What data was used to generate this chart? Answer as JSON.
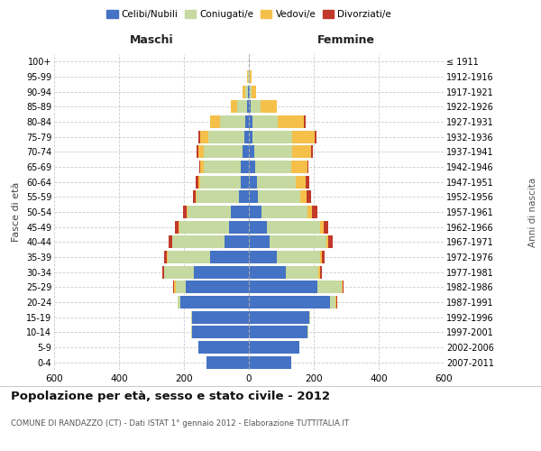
{
  "age_groups": [
    "0-4",
    "5-9",
    "10-14",
    "15-19",
    "20-24",
    "25-29",
    "30-34",
    "35-39",
    "40-44",
    "45-49",
    "50-54",
    "55-59",
    "60-64",
    "65-69",
    "70-74",
    "75-79",
    "80-84",
    "85-89",
    "90-94",
    "95-99",
    "100+"
  ],
  "birth_years": [
    "2007-2011",
    "2002-2006",
    "1997-2001",
    "1992-1996",
    "1987-1991",
    "1982-1986",
    "1977-1981",
    "1972-1976",
    "1967-1971",
    "1962-1966",
    "1957-1961",
    "1952-1956",
    "1947-1951",
    "1942-1946",
    "1937-1941",
    "1932-1936",
    "1927-1931",
    "1922-1926",
    "1917-1921",
    "1912-1916",
    "≤ 1911"
  ],
  "maschi": {
    "celibi": [
      130,
      155,
      175,
      175,
      210,
      195,
      170,
      120,
      75,
      60,
      55,
      30,
      25,
      25,
      20,
      15,
      10,
      5,
      3,
      1,
      0
    ],
    "coniugati": [
      0,
      0,
      2,
      2,
      10,
      30,
      90,
      130,
      160,
      155,
      135,
      130,
      125,
      115,
      120,
      110,
      80,
      30,
      8,
      2,
      0
    ],
    "vedovi": [
      0,
      0,
      0,
      0,
      0,
      5,
      2,
      2,
      2,
      2,
      3,
      3,
      5,
      10,
      15,
      25,
      30,
      20,
      8,
      3,
      0
    ],
    "divorziati": [
      0,
      0,
      0,
      0,
      0,
      3,
      5,
      8,
      10,
      12,
      10,
      10,
      10,
      3,
      5,
      5,
      0,
      0,
      0,
      0,
      0
    ]
  },
  "femmine": {
    "nubili": [
      130,
      155,
      180,
      185,
      250,
      210,
      115,
      85,
      65,
      55,
      40,
      28,
      25,
      20,
      18,
      12,
      10,
      5,
      2,
      1,
      0
    ],
    "coniugate": [
      0,
      0,
      2,
      5,
      18,
      75,
      100,
      135,
      175,
      165,
      140,
      130,
      120,
      110,
      115,
      120,
      80,
      30,
      5,
      2,
      0
    ],
    "vedove": [
      0,
      0,
      0,
      0,
      2,
      5,
      5,
      5,
      5,
      10,
      15,
      20,
      30,
      50,
      60,
      70,
      80,
      50,
      15,
      5,
      0
    ],
    "divorziate": [
      0,
      0,
      0,
      0,
      2,
      3,
      5,
      8,
      12,
      15,
      15,
      15,
      10,
      3,
      5,
      5,
      5,
      0,
      0,
      0,
      0
    ]
  },
  "colors": {
    "celibi_nubili": "#4472c4",
    "coniugati": "#c5d9a0",
    "vedovi": "#f5c04a",
    "divorziati": "#c0392b"
  },
  "xlim": 600,
  "title": "Popolazione per età, sesso e stato civile - 2012",
  "subtitle": "COMUNE DI RANDAZZO (CT) - Dati ISTAT 1° gennaio 2012 - Elaborazione TUTTITALIA.IT",
  "ylabel_left": "Fasce di età",
  "ylabel_right": "Anni di nascita"
}
